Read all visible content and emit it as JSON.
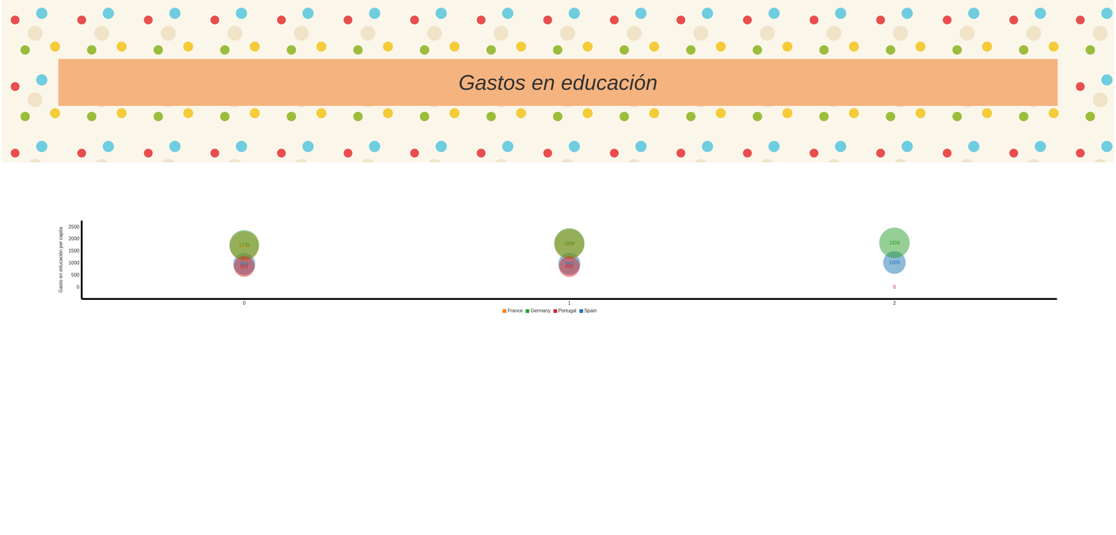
{
  "chart_data": {
    "type": "bubble",
    "title": "Gastos en educación",
    "y_label": "Gasto en educación per capita",
    "categories": [
      "0",
      "1",
      "2"
    ],
    "series": [
      {
        "name": "Spain",
        "color": "#1f77b4",
        "values": [
          953,
          961,
          1009
        ]
      },
      {
        "name": "France",
        "color": "#ff7f0e",
        "values": [
          1700,
          1780,
          null
        ]
      },
      {
        "name": "Germany",
        "color": "#2ca02c",
        "values": [
          1739,
          1806,
          1828
        ]
      },
      {
        "name": "Portugal",
        "color": "#d62728",
        "values": [
          851,
          845,
          0
        ]
      }
    ],
    "ylim": [
      -500,
      2750
    ],
    "yticks": [
      0,
      500,
      1000,
      1500,
      2000,
      2500
    ],
    "grid": false,
    "legend": "bottom",
    "data_labels": true
  }
}
